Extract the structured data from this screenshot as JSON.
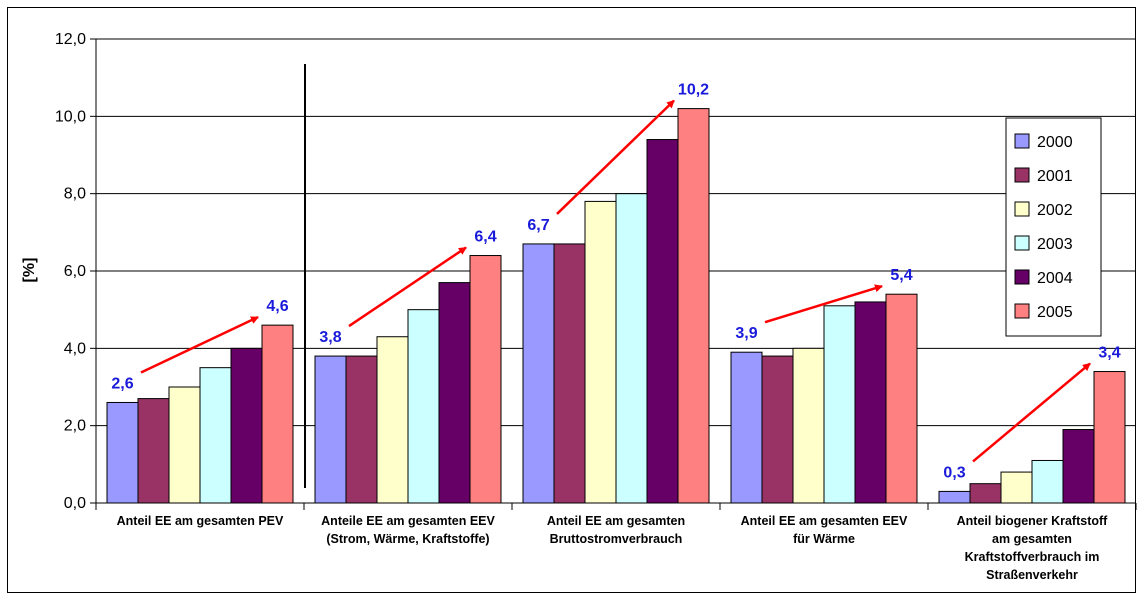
{
  "chart_data": {
    "type": "bar",
    "ylabel": "[%]",
    "ylim": [
      0,
      12
    ],
    "yticks": [
      "0,0",
      "2,0",
      "4,0",
      "6,0",
      "8,0",
      "10,0",
      "12,0"
    ],
    "grid": true,
    "legend_position": "right",
    "categories": [
      [
        "Anteil EE am gesamten PEV"
      ],
      [
        "Anteile EE am gesamten EEV",
        "(Strom, Wärme, Kraftstoffe)"
      ],
      [
        "Anteil EE am gesamten",
        "Bruttostromverbrauch"
      ],
      [
        "Anteil EE am gesamten EEV",
        "für Wärme"
      ],
      [
        "Anteil biogener Kraftstoff",
        "am gesamten",
        "Kraftstoffverbrauch im",
        "Straßenverkehr"
      ]
    ],
    "series": [
      {
        "name": "2000",
        "color": "#9999ff",
        "values": [
          2.6,
          3.8,
          6.7,
          3.9,
          0.3
        ]
      },
      {
        "name": "2001",
        "color": "#993366",
        "values": [
          2.7,
          3.8,
          6.7,
          3.8,
          0.5
        ]
      },
      {
        "name": "2002",
        "color": "#ffffcc",
        "values": [
          3.0,
          4.3,
          7.8,
          4.0,
          0.8
        ]
      },
      {
        "name": "2003",
        "color": "#ccffff",
        "values": [
          3.5,
          5.0,
          8.0,
          5.1,
          1.1
        ]
      },
      {
        "name": "2004",
        "color": "#660066",
        "values": [
          4.0,
          5.7,
          9.4,
          5.2,
          1.9
        ]
      },
      {
        "name": "2005",
        "color": "#ff8080",
        "values": [
          4.6,
          6.4,
          10.2,
          5.4,
          3.4
        ]
      }
    ],
    "annotations": [
      {
        "category": 0,
        "start_label": "2,6",
        "end_label": "4,6"
      },
      {
        "category": 1,
        "start_label": "3,8",
        "end_label": "6,4"
      },
      {
        "category": 2,
        "start_label": "6,7",
        "end_label": "10,2"
      },
      {
        "category": 3,
        "start_label": "3,9",
        "end_label": "5,4"
      },
      {
        "category": 4,
        "start_label": "0,3",
        "end_label": "3,4"
      }
    ],
    "arrow_color": "#ff0000",
    "annotation_color": "#1a1adb"
  }
}
